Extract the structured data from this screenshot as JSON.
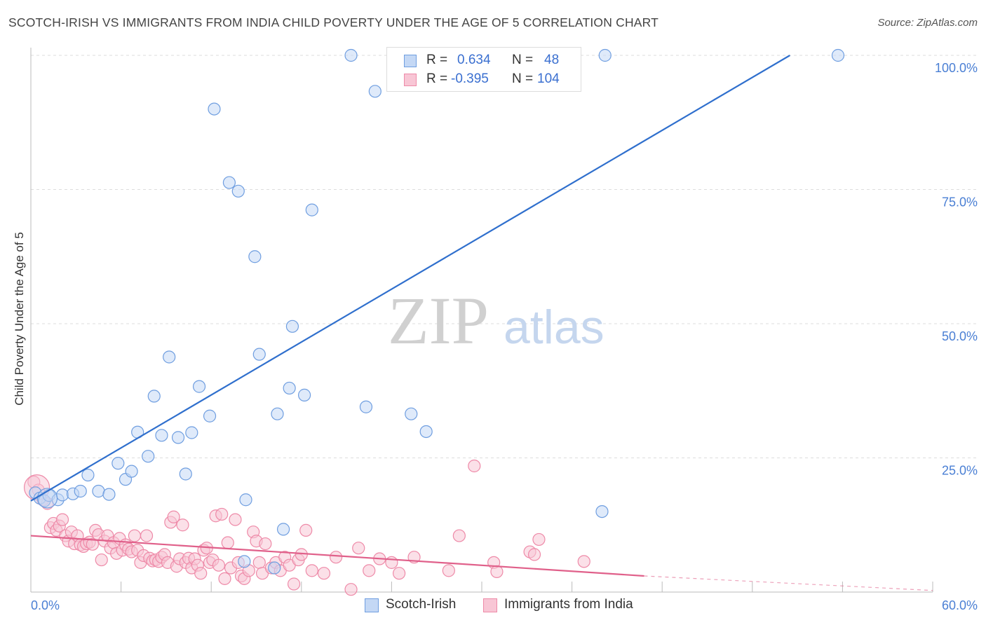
{
  "title": "SCOTCH-IRISH VS IMMIGRANTS FROM INDIA CHILD POVERTY UNDER THE AGE OF 5 CORRELATION CHART",
  "source": "Source: ZipAtlas.com",
  "watermark": {
    "zip": "ZIP",
    "atlas": "atlas"
  },
  "colors": {
    "blue_stroke": "#6f9ee0",
    "blue_fill": "#c4d8f5",
    "blue_line": "#2f6fcd",
    "pink_stroke": "#ee8aa8",
    "pink_fill": "#f8c6d5",
    "pink_line": "#e0608a",
    "tick_text": "#4a7fd4",
    "grid": "#dddddd"
  },
  "legend": {
    "rows": [
      {
        "r_label": "R =",
        "r_value": "0.634",
        "n_label": "N =",
        "n_value": "48"
      },
      {
        "r_label": "R =",
        "r_value": "-0.395",
        "n_label": "N =",
        "n_value": "104"
      }
    ]
  },
  "chart_data": {
    "type": "scatter",
    "title": "SCOTCH-IRISH VS IMMIGRANTS FROM INDIA CHILD POVERTY UNDER THE AGE OF 5 CORRELATION CHART",
    "xlabel": "",
    "ylabel": "Child Poverty Under the Age of 5",
    "xlim": [
      0,
      60
    ],
    "ylim": [
      0,
      100
    ],
    "x_tick_labels": [
      "0.0%",
      "60.0%"
    ],
    "y_tick_labels": [
      "100.0%",
      "75.0%",
      "50.0%",
      "25.0%"
    ],
    "y_tick_values": [
      100,
      75,
      50,
      25
    ],
    "grid": true,
    "legend_position": "top-center",
    "series": [
      {
        "name": "Scotch-Irish",
        "points": [
          [
            0.3,
            18.5
          ],
          [
            0.6,
            17.5
          ],
          [
            0.9,
            17.0
          ],
          [
            1.2,
            18.0
          ],
          [
            1.8,
            17.2
          ],
          [
            2.1,
            18.1
          ],
          [
            2.8,
            18.3
          ],
          [
            3.3,
            18.8
          ],
          [
            3.8,
            21.8
          ],
          [
            4.5,
            18.8
          ],
          [
            5.2,
            18.2
          ],
          [
            5.8,
            24.0
          ],
          [
            6.3,
            21.0
          ],
          [
            6.7,
            22.5
          ],
          [
            7.1,
            29.8
          ],
          [
            7.8,
            25.3
          ],
          [
            8.2,
            36.5
          ],
          [
            8.7,
            29.2
          ],
          [
            9.2,
            43.8
          ],
          [
            9.8,
            28.8
          ],
          [
            10.3,
            22.0
          ],
          [
            10.7,
            29.7
          ],
          [
            11.2,
            38.3
          ],
          [
            11.9,
            32.8
          ],
          [
            12.2,
            90.0
          ],
          [
            13.2,
            76.3
          ],
          [
            13.8,
            74.7
          ],
          [
            14.2,
            5.7
          ],
          [
            14.3,
            17.2
          ],
          [
            14.9,
            62.5
          ],
          [
            15.2,
            44.3
          ],
          [
            16.2,
            4.5
          ],
          [
            16.4,
            33.2
          ],
          [
            16.8,
            11.7
          ],
          [
            17.2,
            38.0
          ],
          [
            17.4,
            49.5
          ],
          [
            18.2,
            36.7
          ],
          [
            18.7,
            71.2
          ],
          [
            21.3,
            100
          ],
          [
            22.3,
            34.5
          ],
          [
            22.9,
            93.3
          ],
          [
            25.3,
            33.2
          ],
          [
            26.3,
            29.9
          ],
          [
            34.5,
            100
          ],
          [
            38.0,
            15.0
          ],
          [
            38.2,
            100
          ],
          [
            53.7,
            100
          ]
        ],
        "trend": {
          "x": [
            0,
            50.5
          ],
          "y": [
            17,
            100
          ]
        }
      },
      {
        "name": "Immigrants from India",
        "points": [
          [
            0.2,
            20.5
          ],
          [
            0.5,
            19.0
          ],
          [
            0.8,
            17.2
          ],
          [
            1.1,
            16.5
          ],
          [
            1.3,
            12.0
          ],
          [
            1.5,
            12.8
          ],
          [
            1.7,
            11.5
          ],
          [
            1.9,
            12.3
          ],
          [
            2.1,
            13.5
          ],
          [
            2.3,
            10.5
          ],
          [
            2.5,
            9.5
          ],
          [
            2.7,
            11.2
          ],
          [
            2.9,
            9.0
          ],
          [
            3.1,
            10.5
          ],
          [
            3.3,
            8.8
          ],
          [
            3.5,
            8.5
          ],
          [
            3.7,
            9.0
          ],
          [
            3.9,
            9.3
          ],
          [
            4.1,
            8.9
          ],
          [
            4.3,
            11.5
          ],
          [
            4.5,
            10.7
          ],
          [
            4.7,
            6.0
          ],
          [
            4.9,
            9.5
          ],
          [
            5.1,
            10.5
          ],
          [
            5.3,
            8.2
          ],
          [
            5.5,
            9.2
          ],
          [
            5.7,
            7.2
          ],
          [
            5.9,
            10.0
          ],
          [
            6.1,
            7.8
          ],
          [
            6.3,
            8.8
          ],
          [
            6.5,
            8.0
          ],
          [
            6.7,
            7.5
          ],
          [
            6.9,
            10.5
          ],
          [
            7.1,
            7.8
          ],
          [
            7.3,
            5.5
          ],
          [
            7.5,
            6.8
          ],
          [
            7.7,
            10.5
          ],
          [
            7.9,
            6.3
          ],
          [
            8.1,
            5.8
          ],
          [
            8.3,
            6.0
          ],
          [
            8.5,
            5.7
          ],
          [
            8.7,
            6.5
          ],
          [
            8.9,
            7.0
          ],
          [
            9.1,
            5.5
          ],
          [
            9.3,
            13.0
          ],
          [
            9.5,
            14.0
          ],
          [
            9.7,
            4.8
          ],
          [
            9.9,
            6.2
          ],
          [
            10.1,
            12.5
          ],
          [
            10.3,
            5.5
          ],
          [
            10.5,
            6.3
          ],
          [
            10.7,
            4.5
          ],
          [
            10.9,
            6.2
          ],
          [
            11.1,
            5.0
          ],
          [
            11.3,
            3.5
          ],
          [
            11.5,
            7.8
          ],
          [
            11.7,
            8.2
          ],
          [
            11.9,
            5.5
          ],
          [
            12.1,
            6.0
          ],
          [
            12.3,
            14.2
          ],
          [
            12.5,
            5.0
          ],
          [
            12.7,
            14.5
          ],
          [
            12.9,
            2.5
          ],
          [
            13.1,
            9.2
          ],
          [
            13.3,
            4.5
          ],
          [
            13.6,
            13.5
          ],
          [
            13.8,
            5.5
          ],
          [
            14.0,
            3.0
          ],
          [
            14.2,
            2.5
          ],
          [
            14.5,
            4.0
          ],
          [
            14.8,
            11.2
          ],
          [
            15.0,
            9.5
          ],
          [
            15.2,
            5.5
          ],
          [
            15.4,
            3.5
          ],
          [
            15.6,
            9.0
          ],
          [
            16.0,
            4.5
          ],
          [
            16.3,
            5.5
          ],
          [
            16.6,
            4.0
          ],
          [
            16.9,
            6.5
          ],
          [
            17.2,
            5.0
          ],
          [
            17.5,
            1.5
          ],
          [
            17.8,
            6.0
          ],
          [
            18.0,
            7.0
          ],
          [
            18.3,
            11.5
          ],
          [
            18.7,
            4.0
          ],
          [
            19.5,
            3.5
          ],
          [
            20.3,
            6.5
          ],
          [
            21.3,
            0.5
          ],
          [
            21.8,
            8.2
          ],
          [
            22.5,
            4.0
          ],
          [
            23.2,
            6.2
          ],
          [
            24.0,
            5.5
          ],
          [
            24.5,
            3.5
          ],
          [
            25.5,
            6.5
          ],
          [
            27.8,
            4.0
          ],
          [
            28.5,
            10.5
          ],
          [
            29.5,
            23.5
          ],
          [
            30.8,
            5.5
          ],
          [
            31.0,
            3.8
          ],
          [
            33.2,
            7.5
          ],
          [
            33.5,
            7.0
          ],
          [
            33.8,
            9.8
          ],
          [
            36.8,
            5.7
          ]
        ],
        "trend": {
          "x": [
            0,
            40.8
          ],
          "y": [
            10.5,
            3.0
          ]
        },
        "trend_extension": {
          "x": [
            40.8,
            60
          ],
          "y": [
            3.0,
            0.3
          ]
        }
      }
    ]
  },
  "bottom_legend": [
    "Scotch-Irish",
    "Immigrants from India"
  ]
}
